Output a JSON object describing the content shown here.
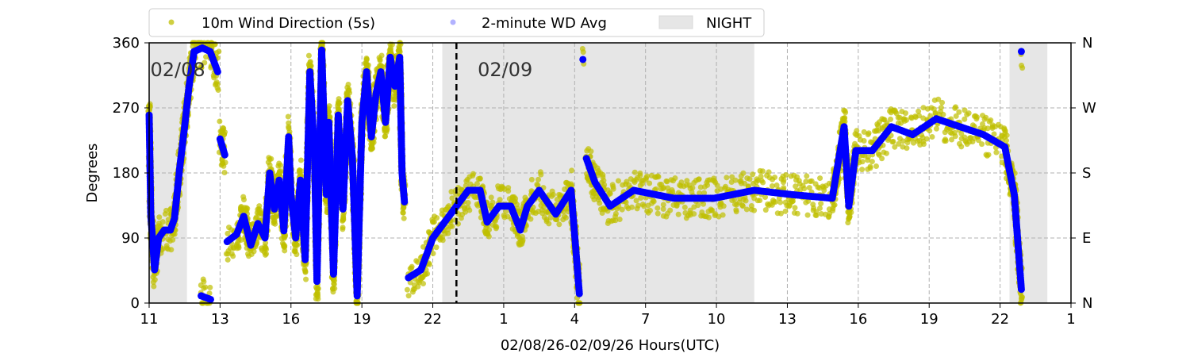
{
  "chart_data": {
    "type": "scatter",
    "xlabel": "02/08/26-02/09/26  Hours(UTC)",
    "ylabel": "Degrees",
    "xlim": [
      0,
      39
    ],
    "ylim": [
      0,
      360
    ],
    "x_unit_note": "hours since plot start",
    "x_ticks": [
      0,
      3,
      6,
      9,
      12,
      15,
      18,
      21,
      24,
      27,
      30,
      33,
      36,
      39
    ],
    "x_tick_labels": [
      "11",
      "13",
      "16",
      "19",
      "22",
      "1",
      "4",
      "7",
      "10",
      "13",
      "16",
      "19",
      "22",
      "1"
    ],
    "y_ticks": [
      0,
      90,
      180,
      270,
      360
    ],
    "y_tick_labels": [
      "0",
      "90",
      "180",
      "270",
      "360"
    ],
    "y2_tick_labels": [
      "N",
      "E",
      "S",
      "W",
      "N"
    ],
    "grid": true,
    "legend_position": "top-center",
    "legend": [
      "10m Wind Direction (5s)",
      "2-minute WD Avg",
      "NIGHT"
    ],
    "date_labels": [
      {
        "x": 0.05,
        "text": "02/08"
      },
      {
        "x": 13.9,
        "text": "02/09"
      }
    ],
    "day_boundary_x": 13,
    "night_ranges": [
      [
        0,
        1.6
      ],
      [
        12.4,
        25.6
      ],
      [
        36.4,
        38.0
      ]
    ],
    "colors": {
      "raw": "#bfbf00",
      "avg": "#0000ff",
      "night": "#e6e6e6"
    },
    "series": [
      {
        "name": "2-minute WD Avg",
        "points": [
          [
            0,
            260
          ],
          [
            0.07,
            123
          ],
          [
            0.23,
            46
          ],
          [
            0.4,
            90
          ],
          [
            0.64,
            101
          ],
          [
            0.9,
            101
          ],
          [
            1.07,
            117
          ],
          [
            1.3,
            189
          ],
          [
            1.5,
            244
          ],
          [
            1.68,
            298
          ],
          [
            1.9,
            348
          ],
          [
            2.25,
            353
          ],
          [
            2.58,
            348
          ],
          [
            2.9,
            320
          ],
          null,
          [
            2.2,
            10
          ],
          [
            2.6,
            5
          ],
          null,
          [
            3.0,
            227
          ],
          [
            3.2,
            205
          ],
          null,
          [
            3.3,
            85
          ],
          [
            3.7,
            95
          ],
          [
            4.0,
            120
          ],
          [
            4.3,
            80
          ],
          [
            4.6,
            110
          ],
          [
            4.9,
            90
          ],
          [
            5.1,
            180
          ],
          [
            5.3,
            130
          ],
          [
            5.5,
            170
          ],
          [
            5.7,
            100
          ],
          [
            5.9,
            230
          ],
          [
            6.0,
            150
          ],
          [
            6.2,
            90
          ],
          [
            6.4,
            170
          ],
          [
            6.6,
            60
          ],
          [
            6.8,
            320
          ],
          [
            7.0,
            200
          ],
          [
            7.1,
            30
          ],
          [
            7.3,
            350
          ],
          [
            7.5,
            150
          ],
          [
            7.6,
            250
          ],
          [
            7.8,
            40
          ],
          [
            8.0,
            260
          ],
          [
            8.2,
            130
          ],
          [
            8.4,
            280
          ],
          [
            8.6,
            200
          ],
          [
            8.8,
            10
          ],
          [
            9.0,
            250
          ],
          [
            9.2,
            320
          ],
          [
            9.4,
            230
          ],
          [
            9.6,
            290
          ],
          [
            9.8,
            320
          ],
          [
            10.0,
            250
          ],
          [
            10.2,
            340
          ],
          [
            10.4,
            300
          ],
          [
            10.6,
            340
          ],
          [
            10.7,
            180
          ],
          [
            10.8,
            140
          ],
          null,
          [
            10.97,
            35
          ],
          [
            11.5,
            46
          ],
          [
            12.0,
            90
          ],
          [
            12.5,
            112
          ],
          [
            13.0,
            134
          ],
          [
            13.5,
            156
          ],
          [
            14.0,
            156
          ],
          [
            14.3,
            112
          ],
          [
            14.8,
            134
          ],
          [
            15.3,
            134
          ],
          [
            15.7,
            101
          ],
          [
            16.0,
            134
          ],
          [
            16.5,
            156
          ],
          [
            17.2,
            123
          ],
          [
            17.85,
            156
          ],
          [
            18.2,
            13
          ],
          null,
          [
            18.35,
            337
          ],
          null,
          [
            18.5,
            200
          ],
          [
            18.86,
            167
          ],
          [
            19.5,
            134
          ],
          [
            20.5,
            156
          ],
          [
            22.2,
            145
          ],
          [
            23.9,
            145
          ],
          [
            25.6,
            156
          ],
          [
            27.2,
            150
          ],
          [
            28.9,
            145
          ],
          [
            29.4,
            244
          ],
          [
            29.6,
            134
          ],
          [
            29.9,
            211
          ],
          [
            30.6,
            211
          ],
          [
            31.4,
            244
          ],
          [
            32.3,
            233
          ],
          [
            33.3,
            255
          ],
          [
            34.3,
            244
          ],
          [
            35.3,
            233
          ],
          [
            36.2,
            216
          ],
          [
            36.6,
            150
          ],
          [
            36.9,
            19
          ],
          null,
          [
            36.9,
            348
          ]
        ]
      },
      {
        "name": "10m Wind Direction (5s)",
        "spread_deg": 28,
        "note": "raw 5s samples scattered around the 2-minute average"
      }
    ]
  }
}
